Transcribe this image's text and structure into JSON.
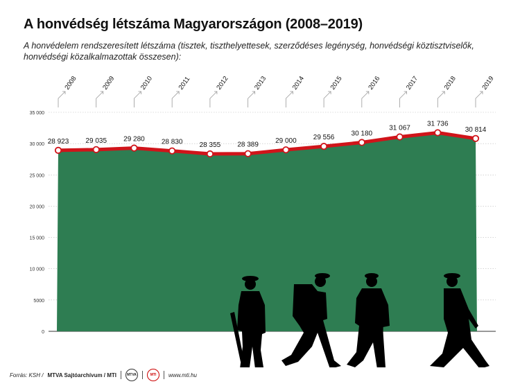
{
  "header": {
    "title": "A honvédség létszáma Magyarországon (2008–2019)",
    "subtitle": "A honvédelem rendszeresített létszáma (tisztek, tiszthelyettesek, szerződéses legénység, honvédségi köztisztviselők, honvédségi közalkalmazottak összesen):"
  },
  "chart_data": {
    "type": "area",
    "title": "A honvédség létszáma Magyarországon (2008–2019)",
    "categories": [
      "2008",
      "2009",
      "2010",
      "2011",
      "2012",
      "2013",
      "2014",
      "2015",
      "2016",
      "2017",
      "2018",
      "2019"
    ],
    "values": [
      28923,
      29035,
      29280,
      28830,
      28355,
      28389,
      29000,
      29556,
      30180,
      31067,
      31736,
      30814
    ],
    "data_labels": [
      "28 923",
      "29 035",
      "29 280",
      "28 830",
      "28 355",
      "28 389",
      "29 000",
      "29 556",
      "30 180",
      "31 067",
      "31 736",
      "30 814"
    ],
    "y_ticks": [
      0,
      5000,
      10000,
      15000,
      20000,
      25000,
      30000,
      35000
    ],
    "y_tick_labels": [
      "0",
      "5000",
      "10 000",
      "15 000",
      "20 000",
      "25 000",
      "30 000",
      "35 000"
    ],
    "ylim": [
      0,
      35000
    ],
    "grid": true,
    "colors": {
      "area": "#2e7d52",
      "line": "#d0141a",
      "marker_fill": "#ffffff"
    }
  },
  "footer": {
    "source": "Forrás: KSH /",
    "archive": "MTVA Sajtóarchívum / MTI",
    "url": "www.mti.hu",
    "logo1": "MTVA",
    "logo2": "MTI"
  },
  "illustration": {
    "name": "walking-soldiers-silhouettes",
    "count": 4,
    "color": "#000000"
  }
}
